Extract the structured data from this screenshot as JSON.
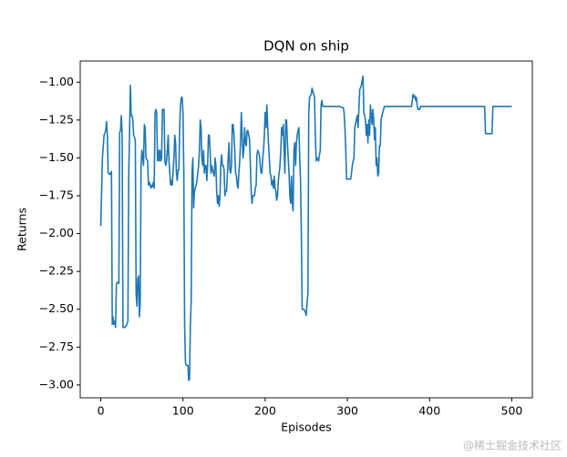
{
  "chart_data": {
    "type": "line",
    "title": "DQN on ship",
    "x_label": "Episodes",
    "y_label": "Returns",
    "annotation": "@稀土掘金技术社区",
    "xlim": [
      -25,
      525
    ],
    "ylim": [
      -3.085,
      -0.86
    ],
    "xticks": [
      0,
      100,
      200,
      300,
      400,
      500
    ],
    "yticks": [
      {
        "value": -1.0,
        "label": "−1.00"
      },
      {
        "value": -1.25,
        "label": "−1.25"
      },
      {
        "value": -1.5,
        "label": "−1.50"
      },
      {
        "value": -1.75,
        "label": "−1.75"
      },
      {
        "value": -2.0,
        "label": "−2.00"
      },
      {
        "value": -2.25,
        "label": "−2.25"
      },
      {
        "value": -2.5,
        "label": "−2.50"
      },
      {
        "value": -2.75,
        "label": "−2.75"
      },
      {
        "value": -3.0,
        "label": "−3.00"
      }
    ],
    "grid": false,
    "series": [
      {
        "color": "#1f77b4",
        "x": [
          0,
          2,
          4,
          6,
          7,
          8,
          9,
          11,
          13,
          14,
          15,
          16,
          17,
          18,
          19,
          21,
          22,
          23,
          24,
          25,
          26,
          27,
          29,
          31,
          33,
          34,
          35,
          36,
          37,
          38,
          39,
          40,
          42,
          43,
          44,
          45,
          46,
          47,
          48,
          49,
          50,
          51,
          52,
          53,
          54,
          55,
          57,
          58,
          59,
          61,
          62,
          63,
          64,
          65,
          66,
          67,
          68,
          69,
          70,
          71,
          72,
          73,
          74,
          75,
          77,
          78,
          79,
          80,
          81,
          82,
          83,
          84,
          85,
          86,
          87,
          89,
          90,
          91,
          92,
          93,
          94,
          95,
          96,
          97,
          98,
          99,
          100,
          101,
          102,
          103,
          104,
          106,
          107,
          108,
          109,
          110,
          111,
          112,
          113,
          114,
          115,
          116,
          117,
          118,
          119,
          120,
          121,
          122,
          123,
          124,
          125,
          126,
          127,
          128,
          129,
          130,
          131,
          132,
          133,
          134,
          135,
          136,
          137,
          138,
          139,
          140,
          141,
          142,
          143,
          144,
          145,
          146,
          147,
          148,
          149,
          150,
          151,
          152,
          153,
          155,
          156,
          157,
          158,
          159,
          160,
          161,
          162,
          163,
          164,
          165,
          166,
          167,
          168,
          169,
          170,
          171,
          172,
          173,
          174,
          175,
          176,
          177,
          178,
          179,
          180,
          181,
          182,
          183,
          184,
          185,
          187,
          188,
          189,
          190,
          191,
          193,
          194,
          195,
          196,
          197,
          198,
          199,
          200,
          201,
          202,
          203,
          204,
          205,
          206,
          207,
          208,
          209,
          210,
          211,
          212,
          213,
          214,
          215,
          216,
          217,
          218,
          219,
          220,
          221,
          222,
          223,
          224,
          225,
          226,
          227,
          228,
          229,
          230,
          231,
          232,
          233,
          234,
          235,
          236,
          237,
          238,
          239,
          240,
          241,
          242,
          243,
          244,
          245,
          247,
          249,
          250,
          251,
          252,
          253,
          254,
          256,
          257,
          258,
          259,
          260,
          261,
          262,
          263,
          265,
          266,
          267,
          268,
          269,
          270,
          275,
          280,
          290,
          295,
          296,
          297,
          298,
          299,
          304,
          305,
          306,
          307,
          308,
          309,
          312,
          313,
          315,
          317,
          319,
          320,
          321,
          322,
          323,
          324,
          325,
          326,
          327,
          328,
          330,
          331,
          332,
          333,
          334,
          335,
          336,
          337,
          338,
          339,
          340,
          341,
          342,
          343,
          345,
          350,
          360,
          370,
          378,
          380,
          381,
          382,
          383,
          384,
          385,
          386,
          388,
          389,
          400,
          420,
          440,
          460,
          467,
          468,
          476,
          477,
          490,
          500
        ],
        "values": [
          -1.95,
          -1.5,
          -1.35,
          -1.32,
          -1.26,
          -1.35,
          -1.6,
          -1.61,
          -1.59,
          -2.6,
          -2.55,
          -2.6,
          -2.58,
          -2.62,
          -2.33,
          -2.32,
          -2.33,
          -1.33,
          -1.32,
          -1.22,
          -1.35,
          -2.62,
          -2.62,
          -2.61,
          -2.58,
          -1.62,
          -1.35,
          -1.02,
          -1.22,
          -1.22,
          -1.25,
          -1.35,
          -1.38,
          -2.4,
          -2.48,
          -2.3,
          -2.28,
          -2.55,
          -2.45,
          -1.55,
          -1.45,
          -1.5,
          -1.55,
          -1.28,
          -1.3,
          -1.5,
          -1.52,
          -1.68,
          -1.66,
          -1.7,
          -1.68,
          -1.69,
          -1.66,
          -1.7,
          -1.2,
          -1.18,
          -1.2,
          -1.52,
          -1.45,
          -1.52,
          -1.45,
          -1.52,
          -1.5,
          -1.18,
          -1.18,
          -1.52,
          -1.55,
          -1.52,
          -1.45,
          -1.35,
          -1.52,
          -1.6,
          -1.68,
          -1.65,
          -1.68,
          -1.5,
          -1.35,
          -1.4,
          -1.6,
          -1.65,
          -1.58,
          -1.58,
          -1.3,
          -1.15,
          -1.1,
          -1.1,
          -1.2,
          -1.6,
          -2.6,
          -2.85,
          -2.87,
          -2.87,
          -2.97,
          -2.96,
          -2.6,
          -2.45,
          -1.6,
          -1.5,
          -1.83,
          -1.72,
          -1.7,
          -1.68,
          -1.65,
          -1.6,
          -1.55,
          -1.45,
          -1.25,
          -1.3,
          -1.5,
          -1.55,
          -1.45,
          -1.6,
          -1.55,
          -1.55,
          -1.65,
          -1.55,
          -1.35,
          -1.35,
          -1.45,
          -1.6,
          -1.55,
          -1.58,
          -1.6,
          -1.62,
          -1.5,
          -1.55,
          -1.72,
          -1.8,
          -1.75,
          -1.82,
          -1.75,
          -1.55,
          -1.48,
          -1.55,
          -1.55,
          -1.58,
          -1.75,
          -1.72,
          -1.72,
          -1.5,
          -1.4,
          -1.58,
          -1.6,
          -1.55,
          -1.28,
          -1.28,
          -1.35,
          -1.45,
          -1.6,
          -1.62,
          -1.68,
          -1.7,
          -1.6,
          -1.52,
          -1.4,
          -1.2,
          -1.35,
          -1.5,
          -1.45,
          -1.3,
          -1.4,
          -1.42,
          -1.32,
          -1.32,
          -1.35,
          -1.38,
          -1.55,
          -1.72,
          -1.8,
          -1.75,
          -1.75,
          -1.7,
          -1.68,
          -1.48,
          -1.45,
          -1.48,
          -1.55,
          -1.6,
          -1.6,
          -1.5,
          -1.45,
          -1.35,
          -1.2,
          -1.3,
          -1.15,
          -1.28,
          -1.4,
          -1.5,
          -1.6,
          -1.62,
          -1.68,
          -1.65,
          -1.7,
          -1.62,
          -1.7,
          -1.72,
          -1.78,
          -1.75,
          -1.65,
          -1.6,
          -1.55,
          -1.45,
          -1.3,
          -1.35,
          -1.28,
          -1.45,
          -1.6,
          -1.25,
          -1.25,
          -1.4,
          -1.5,
          -1.6,
          -1.75,
          -1.8,
          -1.62,
          -1.8,
          -1.85,
          -1.45,
          -1.4,
          -1.55,
          -1.4,
          -1.35,
          -1.32,
          -1.3,
          -1.5,
          -1.65,
          -2.0,
          -2.5,
          -2.5,
          -2.52,
          -2.54,
          -2.45,
          -2.4,
          -1.2,
          -1.1,
          -1.08,
          -1.04,
          -1.06,
          -1.08,
          -1.1,
          -1.35,
          -1.52,
          -1.5,
          -1.52,
          -1.48,
          -1.45,
          -1.15,
          -1.12,
          -1.16,
          -1.16,
          -1.16,
          -1.16,
          -1.17,
          -1.2,
          -1.3,
          -1.45,
          -1.64,
          -1.64,
          -1.6,
          -1.55,
          -1.52,
          -1.5,
          -1.3,
          -1.22,
          -1.3,
          -1.05,
          -1.02,
          -0.96,
          -1.2,
          -1.22,
          -1.25,
          -1.35,
          -1.28,
          -1.4,
          -1.25,
          -1.35,
          -1.15,
          -1.28,
          -1.18,
          -1.25,
          -1.38,
          -1.3,
          -1.55,
          -1.5,
          -1.62,
          -1.6,
          -1.42,
          -1.42,
          -1.25,
          -1.22,
          -1.2,
          -1.16,
          -1.16,
          -1.16,
          -1.16,
          -1.16,
          -1.08,
          -1.1,
          -1.09,
          -1.12,
          -1.1,
          -1.16,
          -1.18,
          -1.18,
          -1.16,
          -1.16,
          -1.16,
          -1.16,
          -1.16,
          -1.16,
          -1.34,
          -1.34,
          -1.16,
          -1.16,
          -1.16
        ]
      }
    ]
  }
}
